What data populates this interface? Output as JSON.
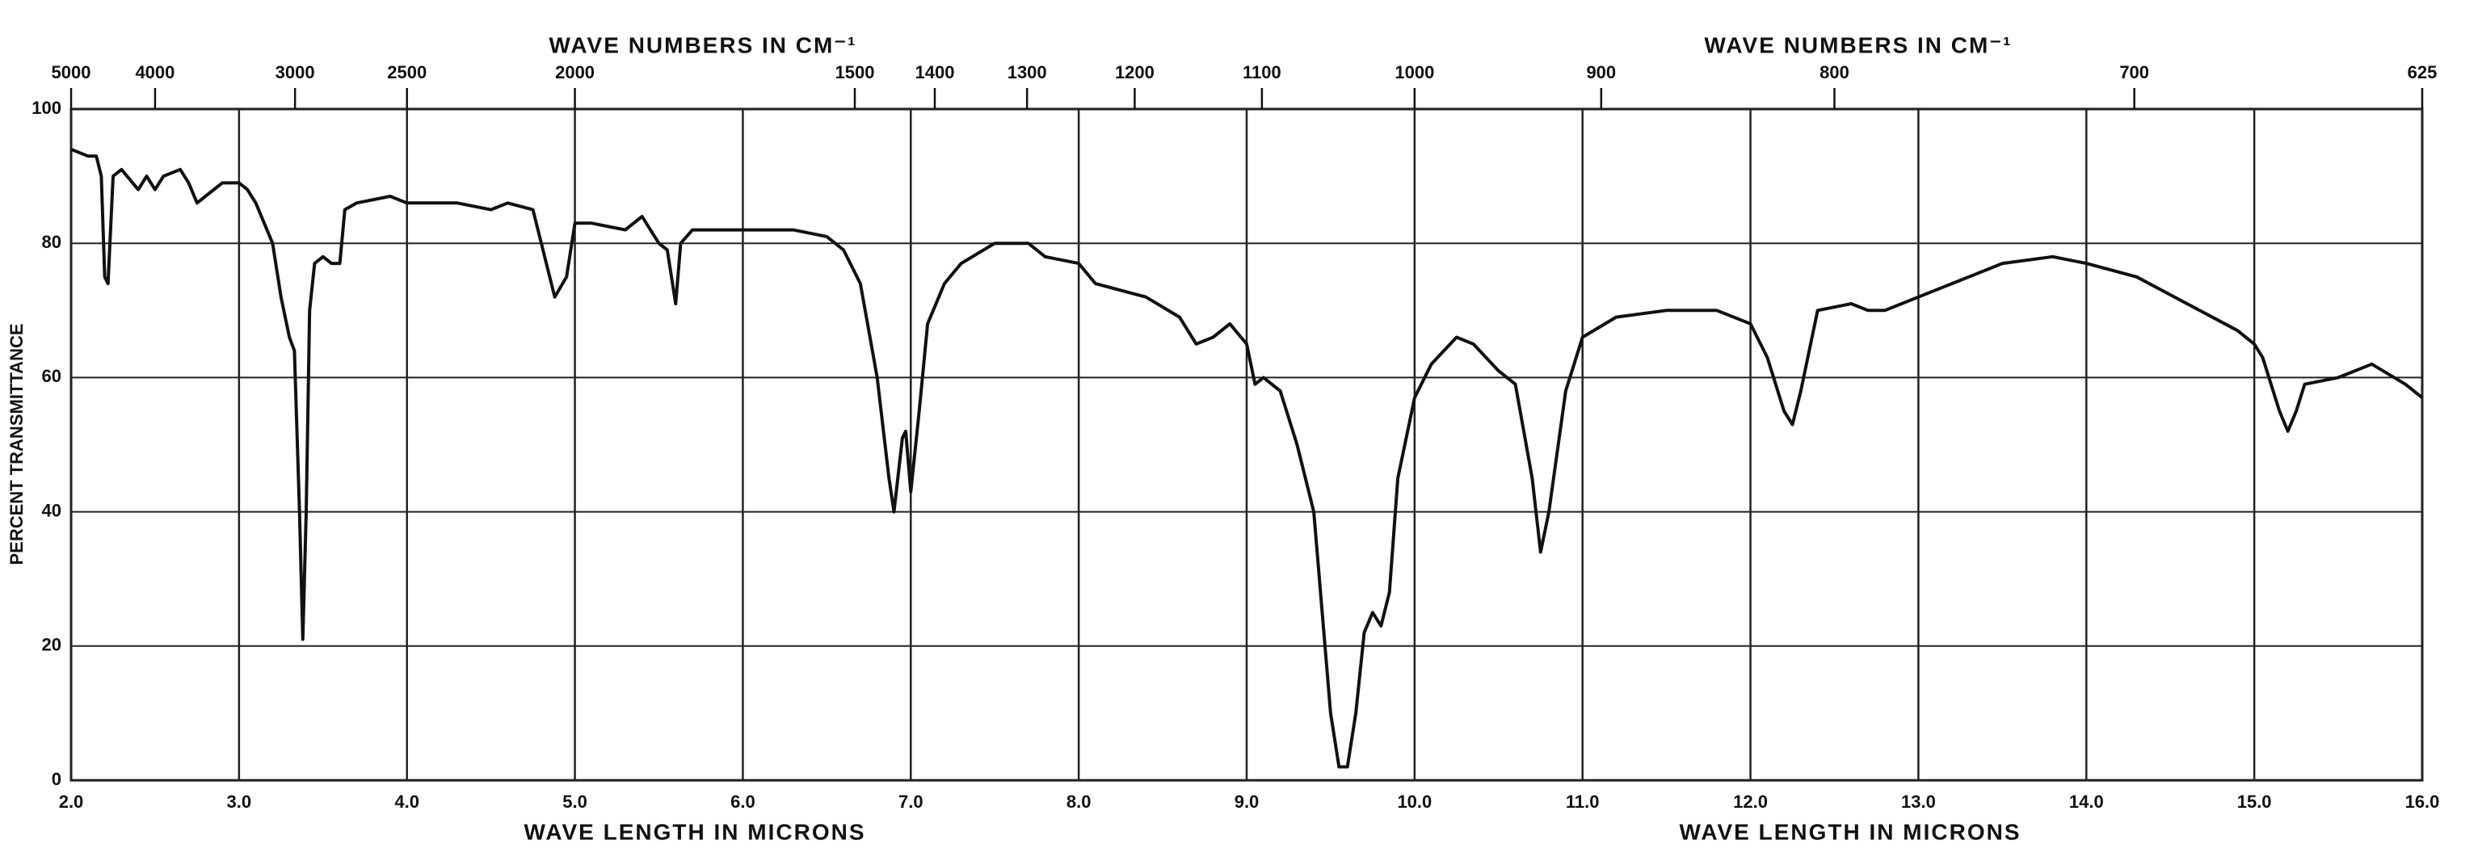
{
  "chart_data": {
    "type": "line",
    "x_label": "WAVE LENGTH IN MICRONS",
    "x2_label": "WAVE NUMBERS IN CM⁻¹",
    "y_label": "PERCENT TRANSMITTANCE",
    "color": "#111111",
    "grid": true,
    "xlim": [
      2,
      16
    ],
    "ylim": [
      0,
      100
    ],
    "xticks": [
      {
        "value": 2,
        "label": "2.0"
      },
      {
        "value": 3,
        "label": "3.0"
      },
      {
        "value": 4,
        "label": "4.0"
      },
      {
        "value": 5,
        "label": "5.0"
      },
      {
        "value": 6,
        "label": "6.0"
      },
      {
        "value": 7,
        "label": "7.0"
      },
      {
        "value": 8,
        "label": "8.0"
      },
      {
        "value": 9,
        "label": "9.0"
      },
      {
        "value": 10,
        "label": "10.0"
      },
      {
        "value": 11,
        "label": "11.0"
      },
      {
        "value": 12,
        "label": "12.0"
      },
      {
        "value": 13,
        "label": "13.0"
      },
      {
        "value": 14,
        "label": "14.0"
      },
      {
        "value": 15,
        "label": "15.0"
      },
      {
        "value": 16,
        "label": "16.0"
      }
    ],
    "x2ticks": [
      5000,
      4000,
      3000,
      2500,
      2000,
      1500,
      1400,
      1300,
      1200,
      1100,
      1000,
      900,
      800,
      700,
      625
    ],
    "yticks": [
      0,
      20,
      40,
      60,
      80,
      100
    ],
    "x": [
      2.0,
      2.1,
      2.15,
      2.18,
      2.2,
      2.22,
      2.25,
      2.3,
      2.4,
      2.45,
      2.5,
      2.55,
      2.65,
      2.7,
      2.75,
      2.8,
      2.9,
      3.0,
      3.05,
      3.1,
      3.2,
      3.25,
      3.3,
      3.33,
      3.36,
      3.38,
      3.4,
      3.42,
      3.45,
      3.5,
      3.55,
      3.6,
      3.63,
      3.7,
      3.9,
      4.0,
      4.3,
      4.5,
      4.6,
      4.75,
      4.8,
      4.88,
      4.95,
      5.0,
      5.1,
      5.3,
      5.4,
      5.5,
      5.55,
      5.6,
      5.63,
      5.7,
      6.0,
      6.3,
      6.5,
      6.6,
      6.7,
      6.8,
      6.87,
      6.9,
      6.95,
      6.97,
      7.0,
      7.05,
      7.1,
      7.2,
      7.3,
      7.5,
      7.7,
      7.8,
      8.0,
      8.1,
      8.4,
      8.6,
      8.7,
      8.8,
      8.9,
      9.0,
      9.05,
      9.1,
      9.2,
      9.3,
      9.4,
      9.45,
      9.5,
      9.55,
      9.6,
      9.65,
      9.7,
      9.75,
      9.8,
      9.85,
      9.9,
      10.0,
      10.1,
      10.25,
      10.35,
      10.5,
      10.6,
      10.7,
      10.75,
      10.8,
      10.9,
      11.0,
      11.2,
      11.5,
      11.8,
      12.0,
      12.1,
      12.2,
      12.25,
      12.3,
      12.4,
      12.6,
      12.7,
      12.8,
      13.0,
      13.3,
      13.5,
      13.8,
      14.0,
      14.3,
      14.6,
      14.9,
      15.0,
      15.05,
      15.15,
      15.2,
      15.25,
      15.3,
      15.5,
      15.7,
      15.9,
      16.0
    ],
    "values": [
      94,
      93,
      93,
      90,
      75,
      74,
      90,
      91,
      88,
      90,
      88,
      90,
      91,
      89,
      86,
      87,
      89,
      89,
      88,
      86,
      80,
      72,
      66,
      64,
      40,
      21,
      40,
      70,
      77,
      78,
      77,
      77,
      85,
      86,
      87,
      86,
      86,
      85,
      86,
      85,
      80,
      72,
      75,
      83,
      83,
      82,
      84,
      80,
      79,
      71,
      80,
      82,
      82,
      82,
      81,
      79,
      74,
      60,
      45,
      40,
      51,
      52,
      43,
      55,
      68,
      74,
      77,
      80,
      80,
      78,
      77,
      74,
      72,
      69,
      65,
      66,
      68,
      65,
      59,
      60,
      58,
      50,
      40,
      25,
      10,
      2,
      2,
      10,
      22,
      25,
      23,
      28,
      45,
      57,
      62,
      66,
      65,
      61,
      59,
      45,
      34,
      40,
      58,
      66,
      69,
      70,
      70,
      68,
      63,
      55,
      53,
      58,
      70,
      71,
      70,
      70,
      72,
      75,
      77,
      78,
      77,
      75,
      71,
      67,
      65,
      63,
      55,
      52,
      55,
      59,
      60,
      62,
      59,
      57
    ]
  }
}
